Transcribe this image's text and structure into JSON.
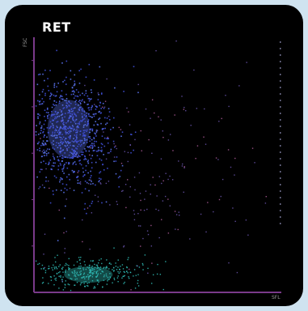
{
  "chart_data": {
    "type": "scatter",
    "title": "RET",
    "ylabel": "FSC",
    "xlabel": "SFL",
    "xlim": [
      0,
      100
    ],
    "ylim": [
      0,
      100
    ],
    "grid": false,
    "colors": {
      "axis": "#7a3a8a",
      "cluster_main": "#3f4fd6",
      "cluster_core": "#5b74ee",
      "cluster_low": "#2fb8b2",
      "scatter": "#7a62c8",
      "scatter_warm": "#c86ab0",
      "background": "#000000"
    },
    "series": [
      {
        "name": "",
        "center": [
          14,
          63
        ],
        "spread": [
          9,
          11
        ],
        "count": 900
      },
      {
        "name": "",
        "center": [
          22,
          8
        ],
        "spread": [
          12,
          3
        ],
        "count": 330
      },
      {
        "name": "",
        "center": [
          40,
          45
        ],
        "spread": [
          26,
          20
        ],
        "count": 230
      }
    ]
  }
}
